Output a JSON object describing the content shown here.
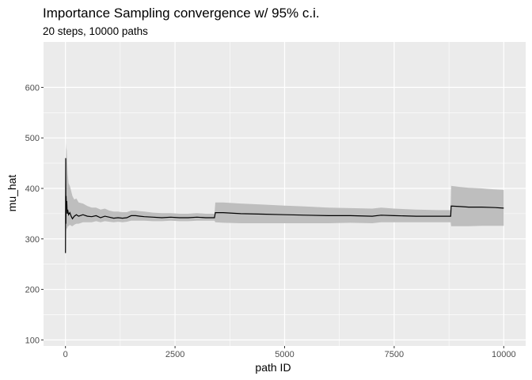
{
  "chart_data": {
    "type": "line",
    "title": "Importance Sampling convergence w/ 95% c.i.",
    "subtitle": "20 steps, 10000 paths",
    "xlabel": "path ID",
    "ylabel": "mu_hat",
    "xlim": [
      -500,
      10500
    ],
    "ylim": [
      88,
      690
    ],
    "x_ticks": [
      0,
      2500,
      5000,
      7500,
      10000
    ],
    "x_tick_labels": [
      "0",
      "2500",
      "5000",
      "7500",
      "10000"
    ],
    "y_ticks": [
      100,
      200,
      300,
      400,
      500,
      600
    ],
    "y_tick_labels": [
      "100",
      "200",
      "300",
      "400",
      "500",
      "600"
    ],
    "grid": true,
    "colors": {
      "panel_background": "#ebebeb",
      "grid_major": "#ffffff",
      "ribbon": "#bebebe",
      "line": "#000000"
    },
    "series": [
      {
        "x": [
          1,
          5,
          10,
          15,
          20,
          30,
          40,
          50,
          70,
          100,
          130,
          160,
          200,
          250,
          300,
          400,
          500,
          600,
          700,
          800,
          900,
          1000,
          1100,
          1200,
          1300,
          1400,
          1500,
          1600,
          1700,
          1800,
          2000,
          2200,
          2400,
          2600,
          2800,
          3000,
          3200,
          3400,
          3420,
          3600,
          4000,
          4500,
          5000,
          5500,
          6000,
          6500,
          7000,
          7200,
          7500,
          8000,
          8500,
          8790,
          8800,
          9000,
          9200,
          9500,
          9800,
          10000
        ],
        "values": [
          272,
          460,
          330,
          385,
          365,
          375,
          350,
          358,
          348,
          352,
          345,
          340,
          345,
          348,
          345,
          348,
          345,
          344,
          346,
          342,
          345,
          343,
          341,
          342,
          341,
          342,
          346,
          346,
          345,
          344,
          343,
          342,
          343,
          342,
          342,
          343,
          342,
          342,
          352,
          352,
          350,
          349,
          348,
          347,
          346,
          346,
          345,
          347,
          346,
          345,
          345,
          345,
          365,
          364,
          363,
          363,
          362,
          361
        ],
        "lower": [
          180,
          300,
          260,
          310,
          318,
          322,
          320,
          325,
          325,
          328,
          326,
          325,
          328,
          330,
          330,
          333,
          333,
          333,
          335,
          333,
          335,
          334,
          333,
          334,
          333,
          334,
          336,
          336,
          336,
          336,
          335,
          335,
          336,
          335,
          335,
          336,
          336,
          336,
          333,
          332,
          331,
          331,
          331,
          331,
          331,
          332,
          331,
          333,
          333,
          333,
          333,
          333,
          325,
          325,
          325,
          326,
          326,
          326
        ],
        "upper": [
          360,
          500,
          420,
          490,
          480,
          475,
          450,
          430,
          410,
          405,
          395,
          385,
          378,
          380,
          372,
          370,
          365,
          362,
          362,
          358,
          360,
          356,
          354,
          354,
          353,
          353,
          356,
          356,
          355,
          354,
          352,
          351,
          351,
          350,
          350,
          351,
          350,
          350,
          372,
          372,
          370,
          368,
          366,
          364,
          362,
          361,
          360,
          362,
          360,
          358,
          357,
          357,
          405,
          403,
          401,
          400,
          398,
          397
        ]
      }
    ]
  }
}
